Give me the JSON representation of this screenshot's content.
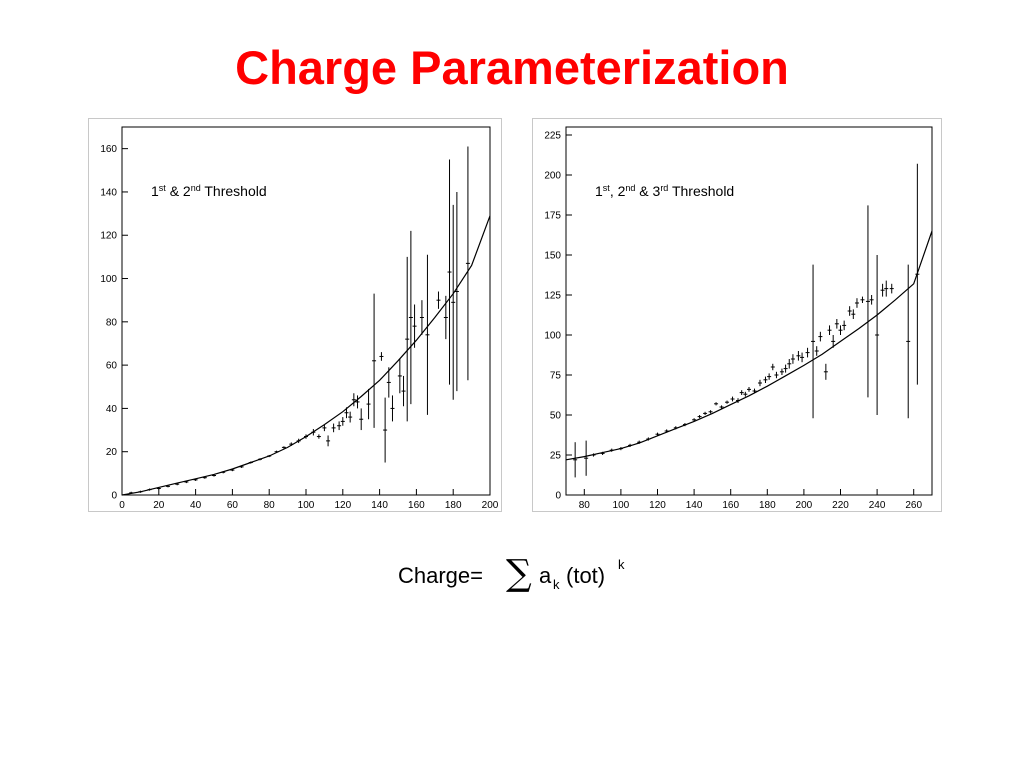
{
  "slide": {
    "title": "Charge Parameterization"
  },
  "formula": {
    "prefix": "Charge=",
    "sigma": "∑",
    "coef": "a",
    "coef_sub": "k",
    "argument": "(tot)",
    "exponent": "k"
  },
  "chart_data": [
    {
      "type": "scatter",
      "annotation": {
        "p1": "1",
        "s1": "st",
        "p2": " & 2",
        "s2": "nd",
        "p3": " Threshold"
      },
      "xlim": [
        0,
        200
      ],
      "ylim": [
        0,
        170
      ],
      "x_ticks": [
        0,
        20,
        40,
        60,
        80,
        100,
        120,
        140,
        160,
        180,
        200
      ],
      "y_ticks": [
        0,
        20,
        40,
        60,
        80,
        100,
        120,
        140,
        160
      ],
      "grid": false,
      "series": [
        {
          "kind": "points-with-errors",
          "points": [
            {
              "x": 5,
              "y": 1,
              "err": 0.5
            },
            {
              "x": 10,
              "y": 1.5,
              "err": 0.5
            },
            {
              "x": 15,
              "y": 2.5,
              "err": 0.5
            },
            {
              "x": 20,
              "y": 3,
              "err": 0.5
            },
            {
              "x": 25,
              "y": 4,
              "err": 0.5
            },
            {
              "x": 30,
              "y": 5,
              "err": 0.5
            },
            {
              "x": 35,
              "y": 6,
              "err": 0.5
            },
            {
              "x": 40,
              "y": 7,
              "err": 0.5
            },
            {
              "x": 45,
              "y": 8,
              "err": 0.5
            },
            {
              "x": 50,
              "y": 9,
              "err": 0.5
            },
            {
              "x": 55,
              "y": 10.5,
              "err": 0.5
            },
            {
              "x": 60,
              "y": 11.5,
              "err": 0.5
            },
            {
              "x": 65,
              "y": 13,
              "err": 0.5
            },
            {
              "x": 70,
              "y": 15,
              "err": 0.5
            },
            {
              "x": 75,
              "y": 16.5,
              "err": 0.5
            },
            {
              "x": 80,
              "y": 18,
              "err": 0.5
            },
            {
              "x": 84,
              "y": 20,
              "err": 0.5
            },
            {
              "x": 88,
              "y": 22,
              "err": 0.5
            },
            {
              "x": 92,
              "y": 23.5,
              "err": 0.8
            },
            {
              "x": 96,
              "y": 25,
              "err": 1
            },
            {
              "x": 100,
              "y": 27,
              "err": 1
            },
            {
              "x": 104,
              "y": 29,
              "err": 1.5
            },
            {
              "x": 107,
              "y": 27,
              "err": 1
            },
            {
              "x": 110,
              "y": 31,
              "err": 1.5
            },
            {
              "x": 112,
              "y": 25,
              "err": 2.5
            },
            {
              "x": 115,
              "y": 31,
              "err": 2
            },
            {
              "x": 118,
              "y": 32,
              "err": 2
            },
            {
              "x": 120,
              "y": 34,
              "err": 2
            },
            {
              "x": 122,
              "y": 38,
              "err": 2.5
            },
            {
              "x": 124,
              "y": 36,
              "err": 2.5
            },
            {
              "x": 126,
              "y": 44,
              "err": 3
            },
            {
              "x": 128,
              "y": 43,
              "err": 3
            },
            {
              "x": 130,
              "y": 35,
              "err": 5
            },
            {
              "x": 134,
              "y": 42,
              "err": 7
            },
            {
              "x": 137,
              "y": 62,
              "err": 31
            },
            {
              "x": 141,
              "y": 64,
              "err": 2
            },
            {
              "x": 143,
              "y": 30,
              "err": 15
            },
            {
              "x": 145,
              "y": 52,
              "err": 7
            },
            {
              "x": 147,
              "y": 40,
              "err": 6
            },
            {
              "x": 151,
              "y": 55,
              "err": 8
            },
            {
              "x": 153,
              "y": 48,
              "err": 7
            },
            {
              "x": 155,
              "y": 72,
              "err": 38
            },
            {
              "x": 157,
              "y": 82,
              "err": 40
            },
            {
              "x": 159,
              "y": 78,
              "err": 10
            },
            {
              "x": 163,
              "y": 82,
              "err": 8
            },
            {
              "x": 166,
              "y": 74,
              "err": 37
            },
            {
              "x": 172,
              "y": 90,
              "err": 4
            },
            {
              "x": 176,
              "y": 82,
              "err": 10
            },
            {
              "x": 178,
              "y": 103,
              "err": 52
            },
            {
              "x": 180,
              "y": 89,
              "err": 45
            },
            {
              "x": 182,
              "y": 94,
              "err": 46
            },
            {
              "x": 188,
              "y": 107,
              "err": 54
            }
          ]
        },
        {
          "kind": "fit-curve",
          "x": [
            0,
            10,
            20,
            30,
            40,
            50,
            60,
            70,
            80,
            90,
            100,
            110,
            120,
            130,
            140,
            150,
            160,
            170,
            180,
            190,
            200
          ],
          "y": [
            0,
            1.5,
            3.5,
            5.5,
            7.5,
            9.5,
            12,
            15,
            18,
            22,
            27,
            32.5,
            38.5,
            45.5,
            53,
            62,
            71.5,
            82,
            93,
            106,
            129
          ]
        }
      ]
    },
    {
      "type": "scatter",
      "annotation": {
        "p1": "1",
        "s1": "st",
        "p2": ", 2",
        "s2": "nd",
        "p3": " & 3",
        "s3": "rd",
        "p4": " Threshold"
      },
      "xlim": [
        70,
        270
      ],
      "ylim": [
        0,
        230
      ],
      "x_ticks": [
        80,
        100,
        120,
        140,
        160,
        180,
        200,
        220,
        240,
        260
      ],
      "y_ticks": [
        0,
        25,
        50,
        75,
        100,
        125,
        150,
        175,
        200,
        225
      ],
      "grid": false,
      "series": [
        {
          "kind": "points-with-errors",
          "points": [
            {
              "x": 75,
              "y": 22,
              "err": 11
            },
            {
              "x": 81,
              "y": 23,
              "err": 11
            },
            {
              "x": 85,
              "y": 25,
              "err": 1
            },
            {
              "x": 90,
              "y": 26,
              "err": 1
            },
            {
              "x": 95,
              "y": 28,
              "err": 1
            },
            {
              "x": 100,
              "y": 29,
              "err": 1
            },
            {
              "x": 105,
              "y": 31,
              "err": 1
            },
            {
              "x": 110,
              "y": 33,
              "err": 1
            },
            {
              "x": 115,
              "y": 35,
              "err": 1
            },
            {
              "x": 120,
              "y": 38,
              "err": 1
            },
            {
              "x": 125,
              "y": 40,
              "err": 1
            },
            {
              "x": 130,
              "y": 42,
              "err": 1
            },
            {
              "x": 135,
              "y": 44,
              "err": 1
            },
            {
              "x": 140,
              "y": 47,
              "err": 1
            },
            {
              "x": 143,
              "y": 49,
              "err": 1
            },
            {
              "x": 146,
              "y": 51,
              "err": 1
            },
            {
              "x": 149,
              "y": 52,
              "err": 1
            },
            {
              "x": 152,
              "y": 57,
              "err": 1
            },
            {
              "x": 155,
              "y": 55,
              "err": 1
            },
            {
              "x": 158,
              "y": 58,
              "err": 1
            },
            {
              "x": 161,
              "y": 60,
              "err": 1.5
            },
            {
              "x": 164,
              "y": 59,
              "err": 1.5
            },
            {
              "x": 166,
              "y": 64,
              "err": 1.5
            },
            {
              "x": 168,
              "y": 63,
              "err": 1.5
            },
            {
              "x": 170,
              "y": 66,
              "err": 1.5
            },
            {
              "x": 173,
              "y": 65,
              "err": 1.5
            },
            {
              "x": 176,
              "y": 70,
              "err": 2
            },
            {
              "x": 179,
              "y": 72,
              "err": 2
            },
            {
              "x": 181,
              "y": 74,
              "err": 2
            },
            {
              "x": 183,
              "y": 80,
              "err": 2
            },
            {
              "x": 185,
              "y": 75,
              "err": 2
            },
            {
              "x": 188,
              "y": 77,
              "err": 2
            },
            {
              "x": 190,
              "y": 79,
              "err": 2.5
            },
            {
              "x": 192,
              "y": 82,
              "err": 3
            },
            {
              "x": 194,
              "y": 85,
              "err": 3
            },
            {
              "x": 197,
              "y": 87,
              "err": 3
            },
            {
              "x": 199,
              "y": 86,
              "err": 3
            },
            {
              "x": 202,
              "y": 89,
              "err": 3
            },
            {
              "x": 205,
              "y": 96,
              "err": 48
            },
            {
              "x": 207,
              "y": 90,
              "err": 3
            },
            {
              "x": 209,
              "y": 99,
              "err": 3
            },
            {
              "x": 212,
              "y": 77,
              "err": 5
            },
            {
              "x": 214,
              "y": 103,
              "err": 3
            },
            {
              "x": 216,
              "y": 96,
              "err": 4
            },
            {
              "x": 218,
              "y": 107,
              "err": 3
            },
            {
              "x": 220,
              "y": 103,
              "err": 3
            },
            {
              "x": 222,
              "y": 106,
              "err": 3
            },
            {
              "x": 225,
              "y": 115,
              "err": 3
            },
            {
              "x": 227,
              "y": 113,
              "err": 3
            },
            {
              "x": 229,
              "y": 120,
              "err": 3
            },
            {
              "x": 232,
              "y": 122,
              "err": 2
            },
            {
              "x": 235,
              "y": 121,
              "err": 60
            },
            {
              "x": 237,
              "y": 122,
              "err": 3
            },
            {
              "x": 240,
              "y": 100,
              "err": 50
            },
            {
              "x": 243,
              "y": 128,
              "err": 4
            },
            {
              "x": 245,
              "y": 129,
              "err": 5
            },
            {
              "x": 248,
              "y": 129,
              "err": 3
            },
            {
              "x": 257,
              "y": 96,
              "err": 48
            },
            {
              "x": 262,
              "y": 138,
              "err": 69
            }
          ]
        },
        {
          "kind": "fit-curve",
          "x": [
            70,
            80,
            90,
            100,
            110,
            120,
            130,
            140,
            150,
            160,
            170,
            180,
            190,
            200,
            210,
            220,
            230,
            240,
            250,
            260,
            270
          ],
          "y": [
            22,
            24,
            26.5,
            29,
            32.5,
            37,
            41.5,
            46,
            51,
            56.5,
            62,
            68,
            74.5,
            81,
            88,
            96,
            104,
            112.5,
            122,
            132,
            165
          ]
        }
      ]
    }
  ]
}
